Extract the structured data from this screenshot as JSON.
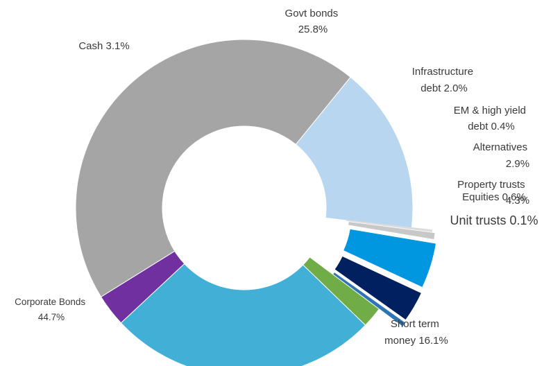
{
  "chart_data": {
    "type": "pie",
    "variant": "donut, exploded segments on right side",
    "title": "",
    "slices": [
      {
        "name": "Short term money",
        "value": 16.1,
        "color": "#b8d6f0",
        "label_lines": [
          "Short term",
          "money 16.1%"
        ]
      },
      {
        "name": "Corporate Bonds",
        "value": 44.7,
        "color": "#a5a5a5",
        "label_lines": [
          "Corporate Bonds",
          "44.7%"
        ]
      },
      {
        "name": "Cash",
        "value": 3.1,
        "color": "#7030a0",
        "label_lines": [
          "Cash 3.1%"
        ]
      },
      {
        "name": "Govt bonds",
        "value": 25.8,
        "color": "#41afd6",
        "label_lines": [
          "Govt bonds",
          "25.8%"
        ]
      },
      {
        "name": "Infrastructure debt",
        "value": 2.0,
        "color": "#70ad47",
        "label_lines": [
          "Infrastructure",
          "debt 2.0%"
        ]
      },
      {
        "name": "EM & high yield debt",
        "value": 0.4,
        "color": "#2e75b6",
        "label_lines": [
          "EM & high yield",
          "debt  0.4%"
        ]
      },
      {
        "name": "Alternatives",
        "value": 2.9,
        "color": "#002060",
        "label_lines": [
          "Alternatives",
          "2.9%"
        ]
      },
      {
        "name": "Property trusts",
        "value": 4.3,
        "color": "#0096e0",
        "label_lines": [
          "Property trusts",
          "4.3%"
        ]
      },
      {
        "name": "Equities",
        "value": 0.6,
        "color": "#c8c8c8",
        "label_lines": [
          "Equities 0.6%"
        ]
      },
      {
        "name": "Unit trusts",
        "value": 0.1,
        "color": "#dcdcdc",
        "label_lines": [
          "Unit trusts 0.1%"
        ]
      }
    ]
  }
}
